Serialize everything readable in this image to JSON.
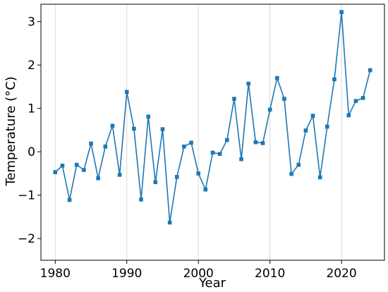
{
  "chart_data": {
    "type": "line",
    "xlabel": "Year",
    "ylabel": "Temperature (°C)",
    "xlim": [
      1978,
      2026
    ],
    "ylim": [
      -2.5,
      3.4
    ],
    "xticks": [
      1980,
      1990,
      2000,
      2010,
      2020
    ],
    "yticks": [
      -2,
      -1,
      0,
      1,
      2,
      3
    ],
    "grid": "vertical",
    "line_color": "#1f77b4",
    "marker": "square",
    "series": [
      {
        "x": [
          1980,
          1981,
          1982,
          1983,
          1984,
          1985,
          1986,
          1987,
          1988,
          1989,
          1990,
          1991,
          1992,
          1993,
          1994,
          1995,
          1996,
          1997,
          1998,
          1999,
          2000,
          2001,
          2002,
          2003,
          2004,
          2005,
          2006,
          2007,
          2008,
          2009,
          2010,
          2011,
          2012,
          2013,
          2014,
          2015,
          2016,
          2017,
          2018,
          2019,
          2020,
          2021,
          2022,
          2023,
          2024
        ],
        "values": [
          -0.47,
          -0.32,
          -1.11,
          -0.3,
          -0.42,
          0.19,
          -0.61,
          0.12,
          0.6,
          -0.53,
          1.38,
          0.53,
          -1.1,
          0.81,
          -0.7,
          0.52,
          -1.63,
          -0.58,
          0.12,
          0.21,
          -0.5,
          -0.87,
          -0.02,
          -0.05,
          0.27,
          1.22,
          -0.17,
          1.57,
          0.22,
          0.2,
          0.97,
          1.7,
          1.22,
          -0.51,
          -0.3,
          0.49,
          0.83,
          -0.59,
          0.58,
          1.67,
          3.22,
          0.84,
          1.17,
          1.24,
          1.88
        ]
      }
    ]
  }
}
